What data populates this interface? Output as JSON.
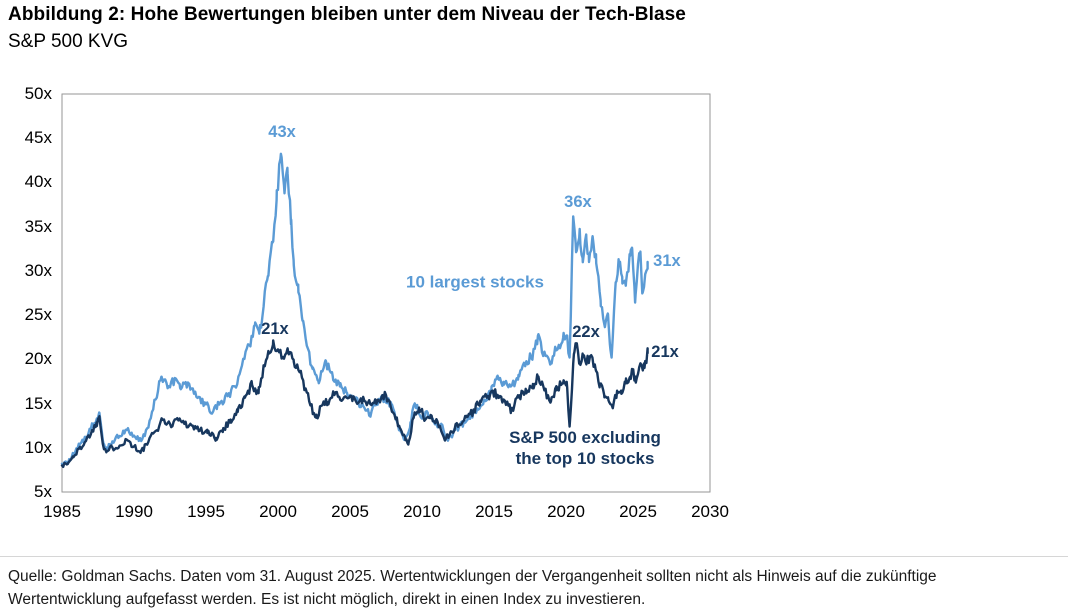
{
  "page": {
    "title": "Abbildung 2: Hohe Bewertungen bleiben unter dem Niveau der Tech-Blase",
    "subtitle": "S&P 500 KVG",
    "footnote": "Quelle: Goldman Sachs. Daten vom 31. August 2025. Wertentwicklungen der Vergangenheit sollten nicht als Hinweis auf die zukünftige Wertentwicklung aufgefasst werden. Es ist nicht möglich, direkt in einen Index zu investieren."
  },
  "colors": {
    "top10": "#5B9BD5",
    "ex_top10": "#17375E",
    "axis_border": "#969696",
    "text": "#000000"
  },
  "chart_data": {
    "type": "line",
    "title": "Abbildung 2: Hohe Bewertungen bleiben unter dem Niveau der Tech-Blase",
    "subtitle": "S&P 500 KVG",
    "xlabel": "",
    "ylabel": "",
    "xlim": [
      1985,
      2030
    ],
    "ylim": [
      5,
      50
    ],
    "grid": false,
    "x_ticks": [
      1985,
      1990,
      1995,
      2000,
      2005,
      2010,
      2015,
      2020,
      2025,
      2030
    ],
    "x_tick_labels": [
      "1985",
      "1990",
      "1995",
      "2000",
      "2005",
      "2010",
      "2015",
      "2020",
      "2025",
      "2030"
    ],
    "y_ticks": [
      5,
      10,
      15,
      20,
      25,
      30,
      35,
      40,
      45,
      50
    ],
    "y_tick_labels": [
      "5x",
      "10x",
      "15x",
      "20x",
      "25x",
      "30x",
      "35x",
      "40x",
      "45x",
      "50x"
    ],
    "series": [
      {
        "name": "10 largest stocks",
        "color_key": "top10",
        "peak_labels": [
          "43x",
          "36x"
        ],
        "end_label": "31x",
        "anchors": [
          [
            1985.0,
            8.2
          ],
          [
            1985.4,
            8.4
          ],
          [
            1985.8,
            9.2
          ],
          [
            1986.2,
            10.2
          ],
          [
            1986.6,
            11.2
          ],
          [
            1987.0,
            12.2
          ],
          [
            1987.4,
            13.3
          ],
          [
            1987.6,
            14.0
          ],
          [
            1987.75,
            12.0
          ],
          [
            1987.9,
            10.2
          ],
          [
            1988.1,
            9.8
          ],
          [
            1988.5,
            10.7
          ],
          [
            1989.0,
            11.4
          ],
          [
            1989.5,
            12.1
          ],
          [
            1990.0,
            11.4
          ],
          [
            1990.5,
            10.7
          ],
          [
            1991.0,
            12.3
          ],
          [
            1991.5,
            15.5
          ],
          [
            1991.9,
            18.2
          ],
          [
            1992.3,
            16.9
          ],
          [
            1992.8,
            17.6
          ],
          [
            1993.2,
            16.7
          ],
          [
            1993.6,
            17.3
          ],
          [
            1994.0,
            16.7
          ],
          [
            1994.5,
            15.7
          ],
          [
            1995.0,
            14.9
          ],
          [
            1995.5,
            14.1
          ],
          [
            1996.0,
            15.1
          ],
          [
            1996.5,
            15.9
          ],
          [
            1997.0,
            16.9
          ],
          [
            1997.5,
            19.2
          ],
          [
            1998.0,
            21.6
          ],
          [
            1998.4,
            24.0
          ],
          [
            1998.7,
            22.8
          ],
          [
            1999.0,
            26.0
          ],
          [
            1999.3,
            29.5
          ],
          [
            1999.6,
            33.0
          ],
          [
            1999.9,
            38.0
          ],
          [
            2000.2,
            43.3
          ],
          [
            2000.45,
            38.5
          ],
          [
            2000.65,
            41.5
          ],
          [
            2000.9,
            35.5
          ],
          [
            2001.1,
            30.5
          ],
          [
            2001.4,
            28.5
          ],
          [
            2001.7,
            24.5
          ],
          [
            2002.0,
            21.5
          ],
          [
            2002.4,
            18.8
          ],
          [
            2002.8,
            17.6
          ],
          [
            2003.3,
            19.8
          ],
          [
            2003.8,
            18.2
          ],
          [
            2004.3,
            16.9
          ],
          [
            2004.8,
            16.2
          ],
          [
            2005.4,
            15.5
          ],
          [
            2006.0,
            14.4
          ],
          [
            2006.4,
            13.8
          ],
          [
            2006.9,
            15.0
          ],
          [
            2007.4,
            15.7
          ],
          [
            2007.9,
            14.6
          ],
          [
            2008.4,
            12.1
          ],
          [
            2008.8,
            10.9
          ],
          [
            2009.2,
            12.8
          ],
          [
            2009.5,
            14.9
          ],
          [
            2010.0,
            13.4
          ],
          [
            2010.4,
            14.0
          ],
          [
            2010.9,
            12.7
          ],
          [
            2011.3,
            12.6
          ],
          [
            2011.8,
            10.9
          ],
          [
            2012.3,
            12.1
          ],
          [
            2012.8,
            12.7
          ],
          [
            2013.3,
            13.4
          ],
          [
            2013.8,
            14.3
          ],
          [
            2014.3,
            15.4
          ],
          [
            2014.8,
            16.3
          ],
          [
            2015.2,
            17.9
          ],
          [
            2015.7,
            17.1
          ],
          [
            2016.2,
            17.0
          ],
          [
            2016.7,
            18.1
          ],
          [
            2017.2,
            19.4
          ],
          [
            2017.7,
            20.6
          ],
          [
            2018.05,
            22.6
          ],
          [
            2018.4,
            20.6
          ],
          [
            2018.9,
            19.4
          ],
          [
            2019.3,
            21.2
          ],
          [
            2019.8,
            22.3
          ],
          [
            2020.05,
            22.6
          ],
          [
            2020.25,
            20.3
          ],
          [
            2020.5,
            36.2
          ],
          [
            2020.7,
            32.0
          ],
          [
            2020.95,
            34.6
          ],
          [
            2021.15,
            31.4
          ],
          [
            2021.4,
            34.0
          ],
          [
            2021.6,
            31.2
          ],
          [
            2021.85,
            33.8
          ],
          [
            2022.1,
            31.0
          ],
          [
            2022.4,
            26.5
          ],
          [
            2022.7,
            23.8
          ],
          [
            2022.9,
            25.3
          ],
          [
            2023.05,
            21.8
          ],
          [
            2023.15,
            20.3
          ],
          [
            2023.45,
            28.5
          ],
          [
            2023.65,
            31.4
          ],
          [
            2023.9,
            29.2
          ],
          [
            2024.15,
            28.4
          ],
          [
            2024.45,
            31.6
          ],
          [
            2024.6,
            32.7
          ],
          [
            2024.8,
            26.3
          ],
          [
            2025.0,
            30.8
          ],
          [
            2025.15,
            32.1
          ],
          [
            2025.3,
            27.6
          ],
          [
            2025.5,
            29.6
          ],
          [
            2025.67,
            31.0
          ]
        ]
      },
      {
        "name": "S&P 500 excluding the top 10 stocks",
        "color_key": "ex_top10",
        "peak_labels": [
          "21x",
          "22x"
        ],
        "end_label": "21x",
        "anchors": [
          [
            1985.0,
            8.0
          ],
          [
            1985.4,
            8.2
          ],
          [
            1985.8,
            9.0
          ],
          [
            1986.2,
            9.9
          ],
          [
            1986.6,
            10.7
          ],
          [
            1987.0,
            11.6
          ],
          [
            1987.4,
            12.8
          ],
          [
            1987.6,
            13.6
          ],
          [
            1987.75,
            11.6
          ],
          [
            1987.9,
            10.0
          ],
          [
            1988.1,
            9.6
          ],
          [
            1988.5,
            10.0
          ],
          [
            1989.0,
            10.3
          ],
          [
            1989.5,
            10.9
          ],
          [
            1990.0,
            10.2
          ],
          [
            1990.45,
            9.4
          ],
          [
            1991.0,
            10.7
          ],
          [
            1991.5,
            11.9
          ],
          [
            1992.0,
            13.2
          ],
          [
            1992.5,
            12.6
          ],
          [
            1993.0,
            13.3
          ],
          [
            1993.5,
            12.8
          ],
          [
            1994.0,
            12.5
          ],
          [
            1994.6,
            12.0
          ],
          [
            1995.1,
            11.7
          ],
          [
            1995.7,
            11.1
          ],
          [
            1996.2,
            12.2
          ],
          [
            1996.7,
            13.1
          ],
          [
            1997.2,
            14.1
          ],
          [
            1997.7,
            15.6
          ],
          [
            1998.2,
            17.2
          ],
          [
            1998.65,
            16.2
          ],
          [
            1999.0,
            19.2
          ],
          [
            1999.35,
            20.8
          ],
          [
            1999.65,
            21.6
          ],
          [
            2000.0,
            21.0
          ],
          [
            2000.35,
            20.2
          ],
          [
            2000.7,
            20.9
          ],
          [
            2001.1,
            19.6
          ],
          [
            2001.5,
            18.6
          ],
          [
            2002.0,
            16.2
          ],
          [
            2002.45,
            13.9
          ],
          [
            2002.65,
            13.4
          ],
          [
            2003.0,
            14.6
          ],
          [
            2003.45,
            15.2
          ],
          [
            2004.0,
            16.2
          ],
          [
            2004.5,
            15.6
          ],
          [
            2005.0,
            15.9
          ],
          [
            2005.5,
            15.1
          ],
          [
            2006.0,
            15.3
          ],
          [
            2006.5,
            14.9
          ],
          [
            2007.0,
            15.4
          ],
          [
            2007.5,
            15.9
          ],
          [
            2008.0,
            14.1
          ],
          [
            2008.45,
            12.4
          ],
          [
            2008.85,
            10.8
          ],
          [
            2009.05,
            10.4
          ],
          [
            2009.4,
            13.4
          ],
          [
            2009.8,
            14.6
          ],
          [
            2010.25,
            13.1
          ],
          [
            2010.6,
            13.6
          ],
          [
            2011.05,
            13.0
          ],
          [
            2011.6,
            10.9
          ],
          [
            2012.05,
            11.9
          ],
          [
            2012.55,
            12.6
          ],
          [
            2013.05,
            13.5
          ],
          [
            2013.55,
            14.1
          ],
          [
            2014.05,
            15.3
          ],
          [
            2014.55,
            15.9
          ],
          [
            2015.05,
            16.2
          ],
          [
            2015.55,
            15.4
          ],
          [
            2016.2,
            14.3
          ],
          [
            2016.7,
            15.6
          ],
          [
            2017.2,
            16.6
          ],
          [
            2017.7,
            17.1
          ],
          [
            2018.05,
            18.1
          ],
          [
            2018.5,
            16.6
          ],
          [
            2018.95,
            15.1
          ],
          [
            2019.35,
            16.6
          ],
          [
            2019.8,
            17.4
          ],
          [
            2020.05,
            17.6
          ],
          [
            2020.25,
            12.3
          ],
          [
            2020.55,
            20.5
          ],
          [
            2020.75,
            21.7
          ],
          [
            2020.95,
            19.6
          ],
          [
            2021.15,
            20.6
          ],
          [
            2021.45,
            19.8
          ],
          [
            2021.75,
            20.4
          ],
          [
            2022.05,
            19.0
          ],
          [
            2022.35,
            17.1
          ],
          [
            2022.65,
            16.1
          ],
          [
            2022.95,
            15.4
          ],
          [
            2023.25,
            14.5
          ],
          [
            2023.55,
            16.4
          ],
          [
            2023.85,
            16.0
          ],
          [
            2024.15,
            17.4
          ],
          [
            2024.45,
            18.0
          ],
          [
            2024.65,
            18.6
          ],
          [
            2024.85,
            17.5
          ],
          [
            2025.05,
            18.6
          ],
          [
            2025.25,
            19.4
          ],
          [
            2025.45,
            19.1
          ],
          [
            2025.67,
            20.7
          ]
        ]
      }
    ],
    "annotations": [
      {
        "text": "43x",
        "year": 2000.28,
        "value": 45.6,
        "color_key": "top10"
      },
      {
        "text": "21x",
        "year": 1999.79,
        "value": 23.3,
        "color_key": "ex_top10"
      },
      {
        "text": "36x",
        "year": 2020.83,
        "value": 37.7,
        "color_key": "top10"
      },
      {
        "text": "22x",
        "year": 2021.39,
        "value": 23.0,
        "color_key": "ex_top10"
      },
      {
        "text": "31x",
        "year": 2027.01,
        "value": 31.0,
        "color_key": "top10"
      },
      {
        "text": "21x",
        "year": 2026.88,
        "value": 20.7,
        "color_key": "ex_top10"
      }
    ],
    "series_labels": [
      {
        "text": "10 largest stocks",
        "year": 2013.68,
        "value": 28.7,
        "color_key": "top10"
      },
      {
        "text": "S&P 500 excluding\nthe top 10 stocks",
        "year": 2021.32,
        "value": 10.0,
        "color_key": "ex_top10"
      }
    ],
    "legend_position": "inline-labels"
  }
}
